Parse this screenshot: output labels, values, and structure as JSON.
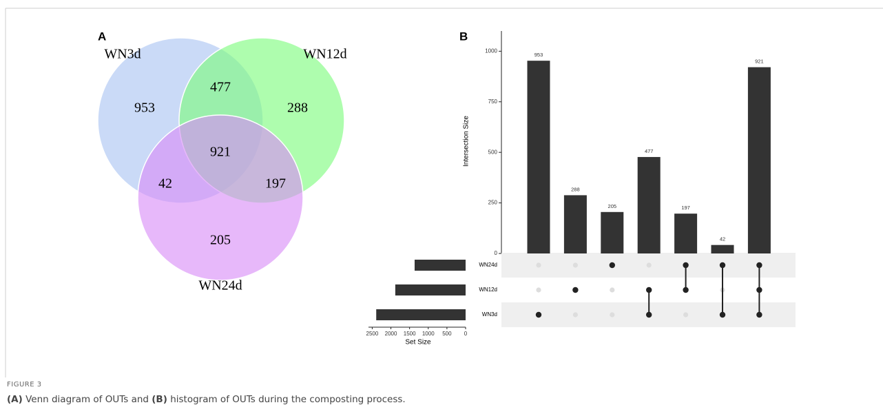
{
  "figure": {
    "label": "FIGURE 3",
    "caption": [
      "(A)",
      "Venn diagram of OUTs and",
      "(B)",
      "histogram of OUTs during the composting process."
    ]
  },
  "chart_data": [
    {
      "type": "venn",
      "panel": "A",
      "sets": [
        {
          "name": "WN3d",
          "color": "#a9c3f2"
        },
        {
          "name": "WN12d",
          "color": "#7cfc7c"
        },
        {
          "name": "WN24d",
          "color": "#d98cf7"
        }
      ],
      "regions": [
        {
          "members": [
            0
          ],
          "value": 953
        },
        {
          "members": [
            0,
            1
          ],
          "value": 477
        },
        {
          "members": [
            1
          ],
          "value": 288
        },
        {
          "members": [
            0,
            1,
            2
          ],
          "value": 921
        },
        {
          "members": [
            0,
            2
          ],
          "value": 42
        },
        {
          "members": [
            1,
            2
          ],
          "value": 197
        },
        {
          "members": [
            2
          ],
          "value": 205
        }
      ]
    },
    {
      "type": "upset",
      "panel": "B",
      "ylabel": "Intersection Size",
      "color": "#333333",
      "ylim": [
        0,
        1100
      ],
      "yticks": [
        0,
        250,
        500,
        750,
        1000
      ],
      "values": [
        953,
        288,
        205,
        477,
        197,
        42,
        921
      ],
      "members": [
        [
          2
        ],
        [
          1
        ],
        [
          0
        ],
        [
          1,
          2
        ],
        [
          0,
          1
        ],
        [
          0,
          2
        ],
        [
          0,
          1,
          2
        ]
      ],
      "sets": [
        "WN24d",
        "WN12d",
        "WN3d"
      ],
      "set_sizes": [
        1365,
        1883,
        2393
      ],
      "set_xlabel": "Set Size",
      "set_xlim": [
        0,
        2600
      ],
      "set_xticks": [
        2500,
        2000,
        1500,
        1000,
        500,
        0
      ]
    }
  ]
}
